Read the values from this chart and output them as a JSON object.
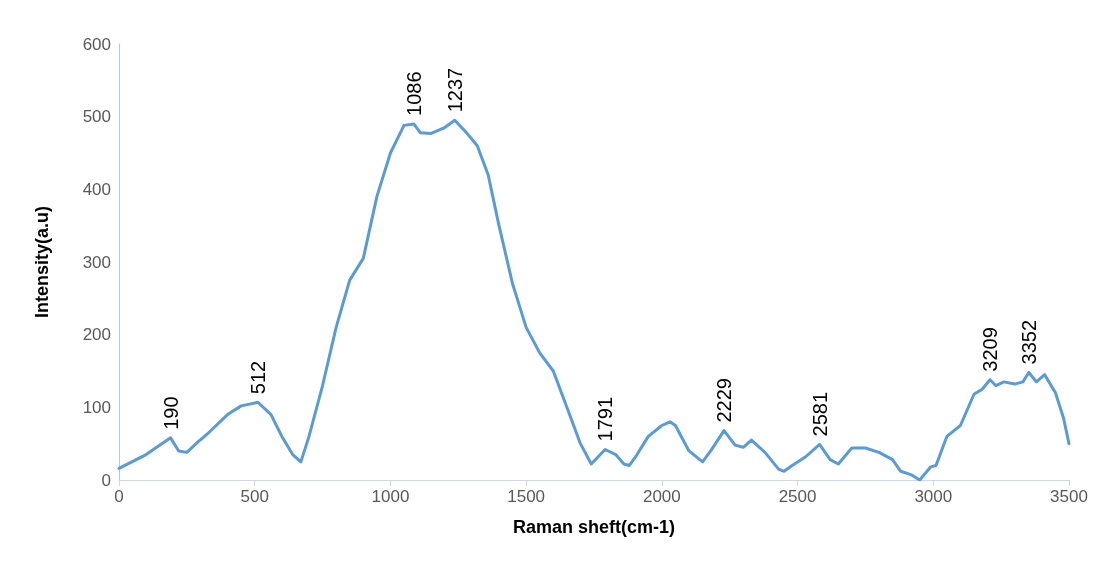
{
  "chart_data": {
    "type": "line",
    "xlabel": "Raman sheft(cm-1)",
    "ylabel": "Intensity(a.u)",
    "xlim": [
      0,
      3500
    ],
    "xticks": [
      0,
      500,
      1000,
      1500,
      2000,
      2500,
      3000,
      3500
    ],
    "ylim": [
      0,
      600
    ],
    "yticks": [
      0,
      100,
      200,
      300,
      400,
      500,
      600
    ],
    "grid": false,
    "marker": "none",
    "line_style": "solid",
    "series": [
      {
        "color": "#5b9bd5",
        "x": [
          0,
          100,
          190,
          220,
          250,
          290,
          330,
          400,
          450,
          512,
          560,
          600,
          640,
          670,
          700,
          750,
          800,
          850,
          900,
          950,
          1000,
          1050,
          1086,
          1110,
          1150,
          1200,
          1237,
          1280,
          1320,
          1360,
          1400,
          1450,
          1500,
          1550,
          1600,
          1650,
          1700,
          1740,
          1791,
          1830,
          1860,
          1880,
          1900,
          1950,
          2000,
          2030,
          2050,
          2100,
          2150,
          2180,
          2229,
          2270,
          2300,
          2330,
          2380,
          2430,
          2450,
          2480,
          2530,
          2581,
          2620,
          2650,
          2700,
          2750,
          2800,
          2850,
          2880,
          2920,
          2950,
          2990,
          3010,
          3050,
          3100,
          3150,
          3180,
          3209,
          3230,
          3260,
          3300,
          3330,
          3352,
          3380,
          3410,
          3450,
          3480,
          3500
        ],
        "values": [
          16,
          35,
          58,
          40,
          38,
          52,
          65,
          90,
          102,
          107,
          90,
          60,
          35,
          25,
          60,
          130,
          210,
          275,
          305,
          390,
          450,
          488,
          490,
          478,
          477,
          485,
          495,
          478,
          460,
          420,
          350,
          270,
          210,
          175,
          150,
          100,
          50,
          22,
          42,
          35,
          22,
          20,
          30,
          60,
          75,
          80,
          75,
          40,
          25,
          40,
          68,
          48,
          45,
          55,
          38,
          15,
          12,
          20,
          32,
          49,
          28,
          22,
          44,
          44,
          38,
          28,
          12,
          7,
          0,
          18,
          20,
          60,
          75,
          118,
          125,
          138,
          130,
          135,
          132,
          135,
          148,
          135,
          145,
          120,
          85,
          50
        ]
      }
    ],
    "annotations": [
      {
        "text": "190",
        "x": 190,
        "y": 58
      },
      {
        "text": "512",
        "x": 512,
        "y": 107
      },
      {
        "text": "1086",
        "x": 1086,
        "y": 490
      },
      {
        "text": "1237",
        "x": 1237,
        "y": 495
      },
      {
        "text": "1791",
        "x": 1791,
        "y": 42
      },
      {
        "text": "2229",
        "x": 2229,
        "y": 68
      },
      {
        "text": "2581",
        "x": 2581,
        "y": 49
      },
      {
        "text": "3209",
        "x": 3209,
        "y": 138
      },
      {
        "text": "3352",
        "x": 3352,
        "y": 148
      }
    ]
  }
}
